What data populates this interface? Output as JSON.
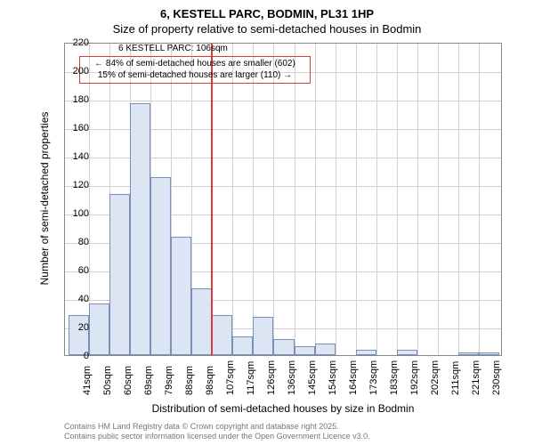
{
  "title": {
    "line1": "6, KESTELL PARC, BODMIN, PL31 1HP",
    "line2": "Size of property relative to semi-detached houses in Bodmin"
  },
  "chart": {
    "type": "histogram",
    "bar_fill": "#dbe5f4",
    "bar_stroke": "#7a8fb8",
    "background_color": "#ffffff",
    "grid_color": "#d0d0d0",
    "axis_color": "#888888",
    "ylim": [
      0,
      220
    ],
    "ytick_step": 20,
    "yticks": [
      0,
      20,
      40,
      60,
      80,
      100,
      120,
      140,
      160,
      180,
      200,
      220
    ],
    "x_categories": [
      "41sqm",
      "50sqm",
      "60sqm",
      "69sqm",
      "79sqm",
      "88sqm",
      "98sqm",
      "107sqm",
      "117sqm",
      "126sqm",
      "136sqm",
      "145sqm",
      "154sqm",
      "164sqm",
      "173sqm",
      "183sqm",
      "192sqm",
      "202sqm",
      "211sqm",
      "221sqm",
      "230sqm"
    ],
    "values": [
      28,
      36,
      113,
      177,
      125,
      83,
      47,
      28,
      13,
      27,
      11,
      6,
      8,
      0,
      4,
      0,
      4,
      0,
      0,
      2,
      2
    ],
    "vline_index": 7,
    "vline_color": "#d93a3a",
    "vline_width": 2,
    "annotation": {
      "title": "6 KESTELL PARC: 106sqm",
      "line1": "← 84% of semi-detached houses are smaller (602)",
      "line2": "15% of semi-detached houses are larger (110) →",
      "border_color": "#d93a3a"
    },
    "ylabel": "Number of semi-detached properties",
    "xlabel": "Distribution of semi-detached houses by size in Bodmin",
    "label_fontsize": 12,
    "tick_fontsize": 11
  },
  "footer": {
    "line1": "Contains HM Land Registry data © Crown copyright and database right 2025.",
    "line2": "Contains public sector information licensed under the Open Government Licence v3.0."
  }
}
